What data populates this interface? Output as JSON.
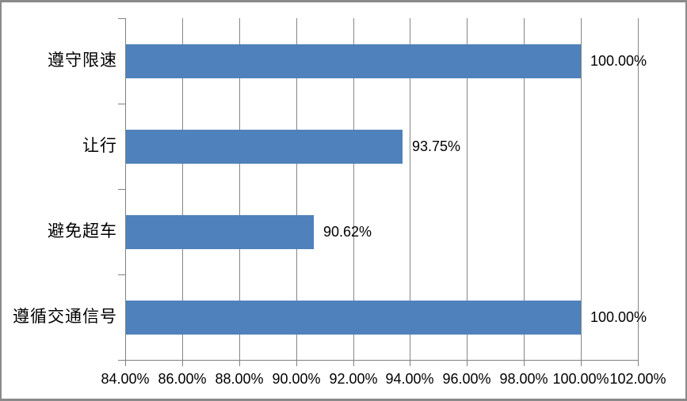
{
  "chart": {
    "background_color": "#FFFFFF",
    "frame_border_color": "#8A8A8A",
    "bar_color": "#4F81BD",
    "grid_color": "#868686",
    "axis_color": "#808080",
    "text_color": "#000000"
  },
  "chart_data": {
    "type": "bar",
    "orientation": "horizontal",
    "title": "",
    "xlabel": "",
    "ylabel": "",
    "categories": [
      "遵守限速",
      "让行",
      "避免超车",
      "遵循交通信号"
    ],
    "values": [
      100.0,
      93.75,
      90.62,
      100.0
    ],
    "data_labels": [
      "100.00%",
      "93.75%",
      "90.62%",
      "100.00%"
    ],
    "xlim": [
      84,
      102
    ],
    "x_tick_step": 2,
    "x_tick_labels": [
      "84.00%",
      "86.00%",
      "88.00%",
      "90.00%",
      "92.00%",
      "94.00%",
      "96.00%",
      "98.00%",
      "100.00%",
      "102.00%"
    ],
    "grid": true,
    "legend_position": "none"
  }
}
